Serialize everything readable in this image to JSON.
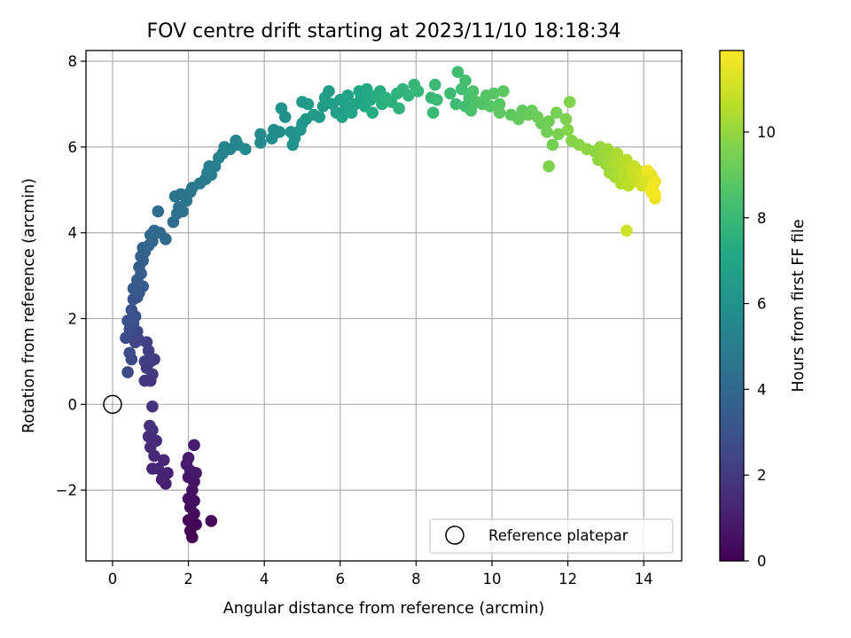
{
  "chart_data": {
    "type": "scatter",
    "title": "FOV centre drift starting at 2023/11/10 18:18:34",
    "xlabel": "Angular distance from reference (arcmin)",
    "ylabel": "Rotation from reference (arcmin)",
    "xlim": [
      -0.7,
      15.0
    ],
    "ylim": [
      -3.65,
      8.25
    ],
    "x_ticks": [
      0,
      2,
      4,
      6,
      8,
      10,
      12,
      14
    ],
    "y_ticks": [
      -2,
      0,
      2,
      4,
      6,
      8
    ],
    "grid": true,
    "colormap": "viridis",
    "colorbar": {
      "label": "Hours from first FF file",
      "range": [
        0,
        11.9
      ],
      "ticks": [
        0,
        2,
        4,
        6,
        8,
        10
      ]
    },
    "legend": {
      "position": "lower-right",
      "entries": [
        "Reference platepar"
      ]
    },
    "reference_point": {
      "label": "Reference platepar",
      "x": 0.0,
      "y": 0.0
    },
    "series": [
      {
        "points": [
          [
            2.1,
            -3.1,
            0.0
          ],
          [
            2.05,
            -2.95,
            0.06
          ],
          [
            2.2,
            -2.8,
            0.12
          ],
          [
            2.6,
            -2.72,
            0.18
          ],
          [
            2.0,
            -2.7,
            0.24
          ],
          [
            2.15,
            -2.55,
            0.3
          ],
          [
            2.05,
            -2.4,
            0.36
          ],
          [
            2.15,
            -2.25,
            0.42
          ],
          [
            2.0,
            -2.2,
            0.48
          ],
          [
            2.1,
            -2.0,
            0.54
          ],
          [
            2.15,
            -1.8,
            0.6
          ],
          [
            2.0,
            -1.7,
            0.66
          ],
          [
            2.05,
            -1.55,
            0.72
          ],
          [
            2.2,
            -1.6,
            0.78
          ],
          [
            1.95,
            -1.4,
            0.84
          ],
          [
            2.0,
            -1.25,
            0.9
          ],
          [
            2.15,
            -0.95,
            0.96
          ],
          [
            1.4,
            -1.85,
            1.02
          ],
          [
            1.3,
            -1.75,
            1.08
          ],
          [
            1.45,
            -1.6,
            1.14
          ],
          [
            1.2,
            -1.5,
            1.2
          ],
          [
            1.35,
            -1.3,
            1.26
          ],
          [
            1.05,
            -1.5,
            1.32
          ],
          [
            1.1,
            -1.2,
            1.38
          ],
          [
            1.0,
            -1.0,
            1.44
          ],
          [
            1.15,
            -0.85,
            1.5
          ],
          [
            0.95,
            -0.75,
            1.56
          ],
          [
            1.05,
            -0.6,
            1.62
          ],
          [
            0.98,
            -0.5,
            1.68
          ],
          [
            1.05,
            -0.05,
            1.74
          ],
          [
            1.0,
            0.55,
            1.8
          ],
          [
            0.85,
            0.55,
            1.86
          ],
          [
            1.05,
            0.7,
            1.92
          ],
          [
            0.9,
            0.85,
            1.98
          ],
          [
            1.0,
            1.0,
            2.04
          ],
          [
            1.1,
            1.05,
            2.1
          ],
          [
            0.85,
            1.0,
            2.16
          ],
          [
            0.95,
            1.25,
            2.22
          ],
          [
            0.9,
            1.45,
            2.28
          ],
          [
            0.7,
            1.5,
            2.34
          ],
          [
            0.6,
            1.45,
            2.4
          ],
          [
            0.55,
            1.65,
            2.46
          ],
          [
            0.65,
            1.7,
            2.52
          ],
          [
            0.4,
            0.75,
            2.58
          ],
          [
            0.5,
            1.05,
            2.64
          ],
          [
            0.45,
            1.2,
            2.7
          ],
          [
            0.35,
            1.55,
            2.76
          ],
          [
            0.45,
            1.75,
            2.82
          ],
          [
            0.55,
            1.9,
            2.88
          ],
          [
            0.4,
            1.95,
            2.94
          ],
          [
            0.6,
            2.05,
            3.0
          ],
          [
            0.5,
            2.2,
            3.06
          ],
          [
            0.55,
            2.45,
            3.12
          ],
          [
            0.65,
            2.5,
            3.18
          ],
          [
            0.55,
            2.7,
            3.24
          ],
          [
            0.7,
            2.6,
            3.3
          ],
          [
            0.8,
            2.75,
            3.36
          ],
          [
            0.65,
            2.9,
            3.42
          ],
          [
            0.75,
            3.05,
            3.48
          ],
          [
            0.7,
            3.2,
            3.54
          ],
          [
            0.8,
            3.35,
            3.6
          ],
          [
            0.75,
            3.45,
            3.66
          ],
          [
            0.85,
            3.55,
            3.72
          ],
          [
            0.8,
            3.65,
            3.78
          ],
          [
            0.95,
            3.7,
            3.84
          ],
          [
            1.05,
            3.8,
            3.9
          ],
          [
            1.0,
            3.95,
            3.96
          ],
          [
            1.1,
            4.05,
            4.02
          ],
          [
            1.25,
            4.0,
            4.08
          ],
          [
            1.4,
            3.85,
            4.14
          ],
          [
            1.2,
            4.5,
            4.2
          ],
          [
            1.6,
            4.25,
            4.26
          ],
          [
            1.7,
            4.45,
            4.32
          ],
          [
            1.85,
            4.5,
            4.38
          ],
          [
            1.75,
            4.6,
            4.44
          ],
          [
            1.65,
            4.85,
            4.5
          ],
          [
            1.8,
            4.9,
            4.56
          ],
          [
            1.95,
            4.75,
            4.62
          ],
          [
            2.05,
            4.95,
            4.68
          ],
          [
            2.1,
            5.05,
            4.74
          ],
          [
            2.3,
            5.15,
            4.8
          ],
          [
            2.45,
            5.25,
            4.86
          ],
          [
            2.5,
            5.4,
            4.92
          ],
          [
            2.6,
            5.35,
            4.98
          ],
          [
            2.7,
            5.55,
            5.04
          ],
          [
            2.55,
            5.55,
            5.1
          ],
          [
            2.8,
            5.75,
            5.16
          ],
          [
            2.9,
            5.85,
            5.22
          ],
          [
            2.95,
            6.0,
            5.28
          ],
          [
            3.1,
            5.95,
            5.34
          ],
          [
            3.3,
            6.05,
            5.4
          ],
          [
            3.25,
            6.15,
            5.46
          ],
          [
            3.5,
            5.95,
            5.52
          ],
          [
            3.9,
            6.1,
            5.58
          ],
          [
            3.9,
            6.3,
            5.64
          ],
          [
            4.2,
            6.2,
            5.7
          ],
          [
            4.25,
            6.4,
            5.76
          ],
          [
            4.4,
            6.35,
            5.82
          ],
          [
            4.55,
            6.7,
            5.88
          ],
          [
            4.45,
            6.9,
            5.94
          ],
          [
            4.7,
            6.35,
            6.0
          ],
          [
            4.8,
            6.2,
            6.05
          ],
          [
            4.75,
            6.05,
            6.1
          ],
          [
            4.95,
            6.4,
            6.15
          ],
          [
            5.0,
            6.55,
            6.2
          ],
          [
            5.1,
            6.65,
            6.25
          ],
          [
            5.0,
            7.05,
            6.3
          ],
          [
            5.15,
            7.0,
            6.35
          ],
          [
            5.3,
            6.75,
            6.4
          ],
          [
            5.45,
            6.7,
            6.45
          ],
          [
            5.55,
            6.95,
            6.5
          ],
          [
            5.6,
            7.15,
            6.55
          ],
          [
            5.7,
            7.3,
            6.6
          ],
          [
            5.8,
            7.0,
            6.65
          ],
          [
            5.9,
            6.8,
            6.7
          ],
          [
            6.0,
            7.1,
            6.75
          ],
          [
            6.05,
            6.7,
            6.8
          ],
          [
            6.15,
            6.95,
            6.85
          ],
          [
            6.2,
            7.2,
            6.9
          ],
          [
            6.3,
            6.8,
            6.95
          ],
          [
            6.4,
            7.0,
            7.0
          ],
          [
            6.5,
            7.3,
            7.05
          ],
          [
            6.55,
            7.15,
            7.1
          ],
          [
            6.65,
            6.95,
            7.15
          ],
          [
            6.7,
            7.35,
            7.2
          ],
          [
            6.8,
            7.1,
            7.25
          ],
          [
            6.85,
            6.8,
            7.3
          ],
          [
            6.95,
            7.2,
            7.35
          ],
          [
            7.05,
            7.3,
            7.4
          ],
          [
            7.1,
            7.0,
            7.45
          ],
          [
            7.2,
            7.15,
            7.5
          ],
          [
            7.35,
            7.05,
            7.55
          ],
          [
            7.5,
            7.25,
            7.6
          ],
          [
            7.55,
            6.9,
            7.65
          ],
          [
            7.65,
            7.35,
            7.7
          ],
          [
            7.8,
            7.2,
            7.75
          ],
          [
            7.95,
            7.45,
            7.8
          ],
          [
            8.05,
            7.3,
            7.85
          ],
          [
            8.4,
            7.15,
            7.9
          ],
          [
            8.45,
            6.8,
            7.95
          ],
          [
            8.5,
            7.45,
            8.0
          ],
          [
            8.55,
            7.1,
            8.05
          ],
          [
            8.9,
            7.25,
            8.1
          ],
          [
            9.05,
            7.0,
            8.15
          ],
          [
            9.1,
            7.75,
            8.2
          ],
          [
            9.2,
            7.35,
            8.25
          ],
          [
            9.3,
            6.95,
            8.3
          ],
          [
            9.3,
            7.55,
            8.35
          ],
          [
            9.4,
            7.15,
            8.4
          ],
          [
            9.45,
            6.85,
            8.45
          ],
          [
            9.5,
            7.3,
            8.5
          ],
          [
            9.6,
            7.05,
            8.55
          ],
          [
            9.75,
            7.0,
            8.6
          ],
          [
            9.85,
            7.2,
            8.65
          ],
          [
            9.95,
            6.95,
            8.7
          ],
          [
            10.05,
            7.25,
            8.75
          ],
          [
            10.2,
            7.0,
            8.8
          ],
          [
            10.3,
            7.3,
            8.85
          ],
          [
            10.2,
            6.8,
            8.9
          ],
          [
            10.5,
            6.75,
            8.95
          ],
          [
            10.8,
            6.85,
            9.0
          ],
          [
            10.7,
            6.65,
            9.05
          ],
          [
            10.95,
            6.75,
            9.1
          ],
          [
            11.05,
            6.85,
            9.15
          ],
          [
            11.2,
            6.7,
            9.2
          ],
          [
            11.3,
            6.55,
            9.25
          ],
          [
            11.5,
            6.6,
            9.3
          ],
          [
            11.45,
            6.35,
            9.35
          ],
          [
            11.6,
            6.05,
            9.4
          ],
          [
            11.7,
            6.8,
            9.45
          ],
          [
            11.75,
            6.3,
            9.5
          ],
          [
            11.95,
            6.65,
            9.55
          ],
          [
            11.5,
            5.55,
            9.6
          ],
          [
            12.05,
            7.05,
            9.65
          ],
          [
            12.0,
            6.4,
            9.7
          ],
          [
            12.1,
            6.15,
            9.75
          ],
          [
            12.3,
            6.05,
            9.8
          ],
          [
            12.5,
            5.95,
            9.85
          ],
          [
            12.7,
            5.9,
            9.9
          ],
          [
            12.8,
            5.7,
            9.95
          ],
          [
            12.85,
            6.0,
            10.0
          ],
          [
            12.95,
            5.8,
            10.05
          ],
          [
            13.0,
            5.6,
            10.1
          ],
          [
            13.05,
            5.95,
            10.15
          ],
          [
            13.1,
            5.4,
            10.2
          ],
          [
            13.15,
            5.75,
            10.25
          ],
          [
            13.2,
            5.55,
            10.3
          ],
          [
            13.25,
            5.3,
            10.35
          ],
          [
            13.3,
            5.85,
            10.4
          ],
          [
            13.35,
            5.6,
            10.45
          ],
          [
            13.4,
            5.15,
            10.5
          ],
          [
            13.45,
            5.45,
            10.55
          ],
          [
            13.5,
            5.3,
            10.6
          ],
          [
            13.55,
            5.7,
            10.65
          ],
          [
            13.6,
            5.1,
            10.7
          ],
          [
            13.65,
            5.5,
            10.75
          ],
          [
            13.7,
            5.35,
            10.8
          ],
          [
            13.75,
            5.55,
            10.85
          ],
          [
            13.8,
            5.2,
            10.9
          ],
          [
            13.85,
            5.45,
            10.95
          ],
          [
            13.55,
            4.05,
            11.0
          ],
          [
            13.9,
            5.3,
            11.05
          ],
          [
            13.95,
            5.1,
            11.1
          ],
          [
            14.0,
            5.4,
            11.15
          ],
          [
            14.05,
            5.2,
            11.2
          ],
          [
            14.1,
            5.3,
            11.25
          ],
          [
            14.15,
            5.05,
            11.3
          ],
          [
            14.2,
            5.35,
            11.35
          ],
          [
            14.25,
            5.25,
            11.4
          ],
          [
            14.2,
            4.95,
            11.45
          ],
          [
            14.3,
            4.8,
            11.5
          ],
          [
            14.25,
            5.1,
            11.55
          ],
          [
            14.3,
            5.2,
            11.6
          ],
          [
            14.1,
            5.45,
            11.65
          ],
          [
            14.2,
            5.0,
            11.7
          ],
          [
            14.3,
            4.9,
            11.8
          ]
        ]
      }
    ]
  }
}
